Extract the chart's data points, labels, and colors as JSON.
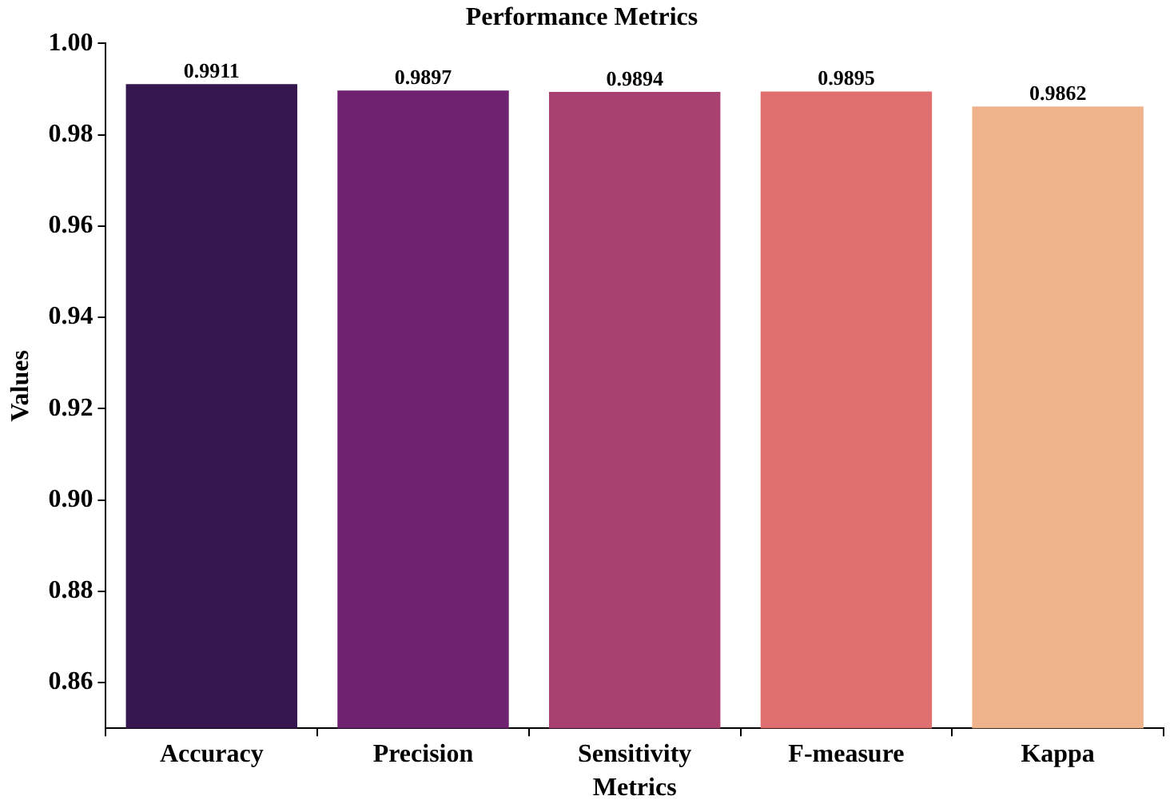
{
  "chart_data": {
    "type": "bar",
    "title": "Performance Metrics",
    "xlabel": "Metrics",
    "ylabel": "Values",
    "categories": [
      "Accuracy",
      "Precision",
      "Sensitivity",
      "F-measure",
      "Kappa"
    ],
    "values": [
      0.9911,
      0.9897,
      0.9894,
      0.9895,
      0.9862
    ],
    "colors": [
      "#35164f",
      "#6e2270",
      "#a8416f",
      "#e0706f",
      "#efb38c"
    ],
    "ylim": [
      0.85,
      1.0
    ],
    "yticks": [
      {
        "value": 0.86,
        "label": "0.86"
      },
      {
        "value": 0.88,
        "label": "0.88"
      },
      {
        "value": 0.9,
        "label": "0.90"
      },
      {
        "value": 0.92,
        "label": "0.92"
      },
      {
        "value": 0.94,
        "label": "0.94"
      },
      {
        "value": 0.96,
        "label": "0.96"
      },
      {
        "value": 0.98,
        "label": "0.98"
      },
      {
        "value": 1.0,
        "label": "1.00"
      }
    ],
    "data_labels": true,
    "grid": false,
    "legend": false
  }
}
